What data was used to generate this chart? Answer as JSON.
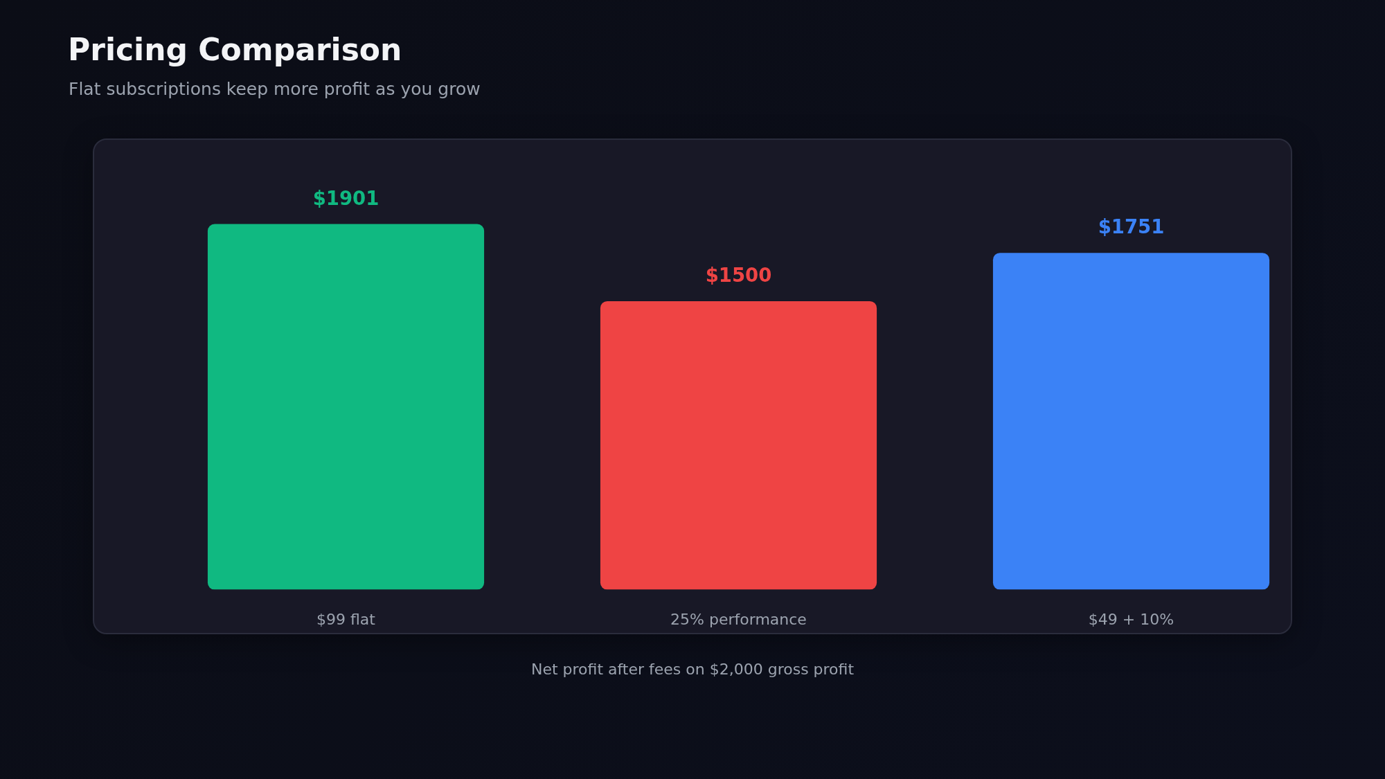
{
  "chart_data": {
    "type": "bar",
    "title": "Pricing Comparison",
    "subtitle": "Flat subscriptions keep more profit as you grow",
    "categories": [
      "$99 flat",
      "25% performance",
      "$49 + 10%"
    ],
    "values": [
      1901,
      1500,
      1751
    ],
    "colors": [
      "#10b981",
      "#ef4444",
      "#3b82f6"
    ],
    "value_labels": [
      "$1901",
      "$1500",
      "$1751"
    ],
    "annotations": [
      "Net profit after fees on $2,000 gross profit"
    ],
    "tick_labels": "x"
  }
}
